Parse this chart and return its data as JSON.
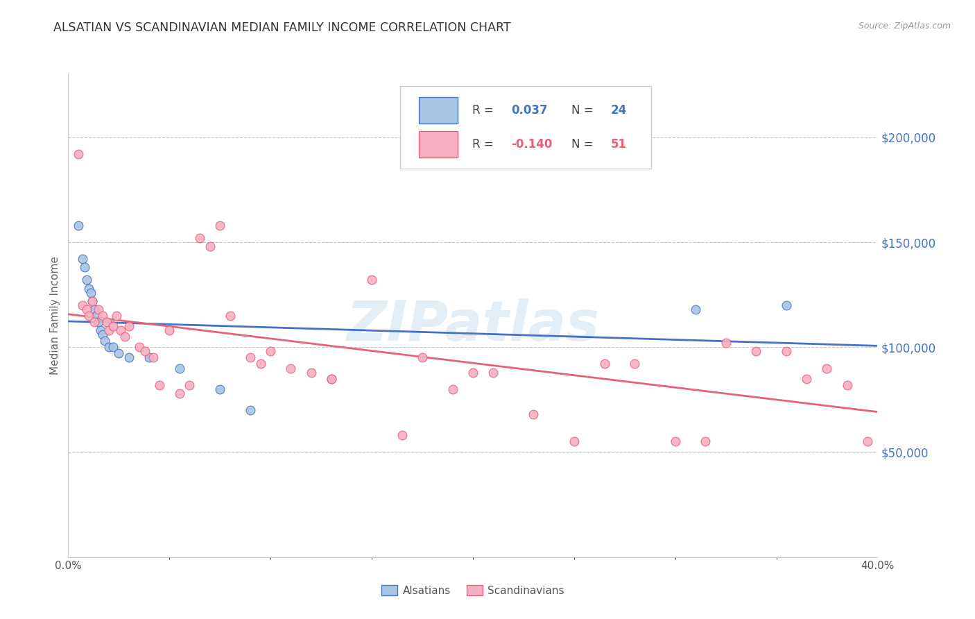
{
  "title": "ALSATIAN VS SCANDINAVIAN MEDIAN FAMILY INCOME CORRELATION CHART",
  "source": "Source: ZipAtlas.com",
  "ylabel": "Median Family Income",
  "yticks": [
    50000,
    100000,
    150000,
    200000
  ],
  "ytick_labels": [
    "$50,000",
    "$100,000",
    "$150,000",
    "$200,000"
  ],
  "xlim": [
    0.0,
    0.4
  ],
  "ylim": [
    0,
    230000
  ],
  "watermark": "ZIPatlas",
  "alsatian_color": "#aac4e4",
  "scandinavian_color": "#f5afc0",
  "alsatian_line_color": "#4472c4",
  "scandinavian_line_color": "#e8607a",
  "alsatian_R": "0.037",
  "alsatian_N": "24",
  "scandinavian_R": "-0.140",
  "scandinavian_N": "51",
  "legend_label_alsatian": "Alsatians",
  "legend_label_scandinavian": "Scandinavians",
  "alsatian_x": [
    0.005,
    0.007,
    0.008,
    0.009,
    0.01,
    0.011,
    0.012,
    0.013,
    0.014,
    0.015,
    0.016,
    0.017,
    0.018,
    0.02,
    0.022,
    0.025,
    0.03,
    0.04,
    0.055,
    0.075,
    0.09,
    0.13,
    0.31,
    0.355
  ],
  "alsatian_y": [
    158000,
    142000,
    138000,
    132000,
    128000,
    126000,
    122000,
    118000,
    115000,
    112000,
    108000,
    106000,
    103000,
    100000,
    100000,
    97000,
    95000,
    95000,
    90000,
    80000,
    70000,
    85000,
    118000,
    120000
  ],
  "scandinavian_x": [
    0.005,
    0.007,
    0.009,
    0.01,
    0.012,
    0.013,
    0.015,
    0.017,
    0.019,
    0.02,
    0.022,
    0.024,
    0.026,
    0.028,
    0.03,
    0.035,
    0.038,
    0.042,
    0.045,
    0.05,
    0.055,
    0.06,
    0.065,
    0.07,
    0.075,
    0.08,
    0.09,
    0.095,
    0.1,
    0.11,
    0.12,
    0.13,
    0.15,
    0.165,
    0.175,
    0.19,
    0.2,
    0.21,
    0.23,
    0.25,
    0.265,
    0.28,
    0.3,
    0.315,
    0.325,
    0.34,
    0.355,
    0.365,
    0.375,
    0.385,
    0.395
  ],
  "scandinavian_y": [
    192000,
    120000,
    118000,
    115000,
    122000,
    112000,
    118000,
    115000,
    112000,
    108000,
    110000,
    115000,
    108000,
    105000,
    110000,
    100000,
    98000,
    95000,
    82000,
    108000,
    78000,
    82000,
    152000,
    148000,
    158000,
    115000,
    95000,
    92000,
    98000,
    90000,
    88000,
    85000,
    132000,
    58000,
    95000,
    80000,
    88000,
    88000,
    68000,
    55000,
    92000,
    92000,
    55000,
    55000,
    102000,
    98000,
    98000,
    85000,
    90000,
    82000,
    55000
  ],
  "background_color": "#ffffff",
  "grid_color": "#c8c8c8",
  "marker_size": 85
}
